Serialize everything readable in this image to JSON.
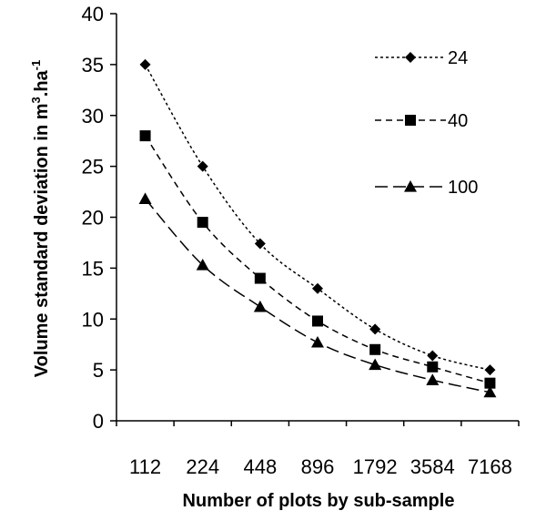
{
  "chart_data": {
    "type": "line",
    "categories": [
      "112",
      "224",
      "448",
      "896",
      "1792",
      "3584",
      "7168"
    ],
    "series": [
      {
        "name": "24",
        "marker": "diamond",
        "dash": "short",
        "values": [
          35.0,
          25.0,
          17.4,
          13.0,
          9.0,
          6.4,
          5.0
        ]
      },
      {
        "name": "40",
        "marker": "square",
        "dash": "medium",
        "values": [
          28.0,
          19.5,
          14.0,
          9.8,
          7.0,
          5.3,
          3.7
        ]
      },
      {
        "name": "100",
        "marker": "triangle",
        "dash": "long",
        "values": [
          21.8,
          15.3,
          11.2,
          7.7,
          5.5,
          4.0,
          2.8
        ]
      }
    ],
    "xlabel": "Number of plots by sub-sample",
    "ylabel": "Volume standard deviation in m³.ha⁻¹",
    "ylabel_parts": {
      "main": "Volume standard deviation in m",
      "sup1": "3",
      "mid": ".ha",
      "sup2": "-1"
    },
    "ylim": [
      0,
      40
    ],
    "yticks": [
      0,
      5,
      10,
      15,
      20,
      25,
      30,
      35,
      40
    ],
    "grid": false,
    "legend_position": "top-right",
    "line_color": "#000000"
  }
}
